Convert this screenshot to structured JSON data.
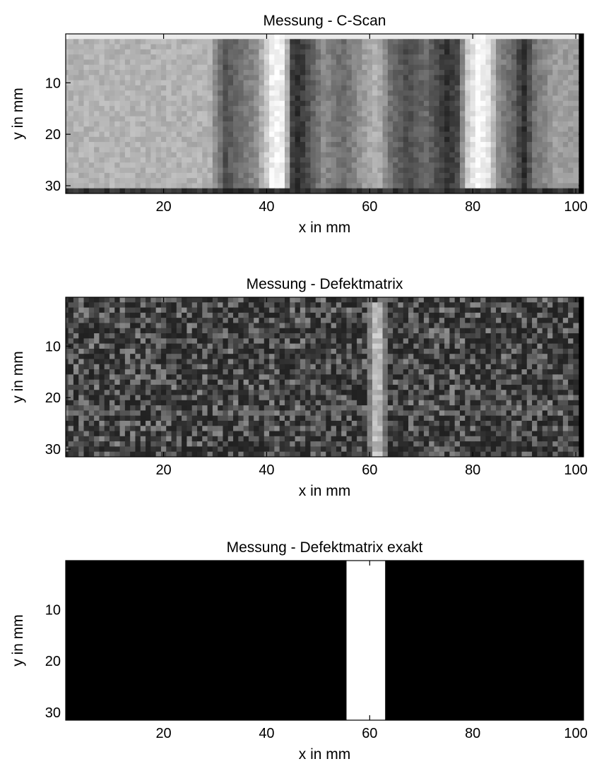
{
  "figure": {
    "background": "#ffffff",
    "colormap": "gray",
    "axes_color": "#000000"
  },
  "chart_data": [
    {
      "type": "heatmap",
      "title": "Messung - C-Scan",
      "xlabel": "x in mm",
      "ylabel": "y in mm",
      "xlim": [
        1,
        101.5
      ],
      "ylim": [
        0.5,
        31.5
      ],
      "y_reversed": true,
      "xticks": [
        20,
        40,
        60,
        80,
        100
      ],
      "yticks": [
        10,
        20,
        30
      ],
      "x_tick_labels": [
        "20",
        "40",
        "60",
        "80",
        "100"
      ],
      "y_tick_labels": [
        "10",
        "20",
        "30"
      ],
      "columns": 100,
      "rows": 31,
      "value_range": [
        0,
        1
      ],
      "column_profile": [
        [
          1,
          0.7
        ],
        [
          29,
          0.7
        ],
        [
          30,
          0.55
        ],
        [
          32,
          0.32
        ],
        [
          35,
          0.45
        ],
        [
          38,
          0.55
        ],
        [
          40,
          0.8
        ],
        [
          41.5,
          1.0
        ],
        [
          43.5,
          0.9
        ],
        [
          45,
          0.25
        ],
        [
          46,
          0.18
        ],
        [
          48,
          0.3
        ],
        [
          51,
          0.55
        ],
        [
          55,
          0.42
        ],
        [
          59,
          0.62
        ],
        [
          61.5,
          0.72
        ],
        [
          64,
          0.45
        ],
        [
          67,
          0.3
        ],
        [
          71,
          0.42
        ],
        [
          75,
          0.2
        ],
        [
          77,
          0.28
        ],
        [
          79,
          0.8
        ],
        [
          81,
          0.98
        ],
        [
          83,
          0.9
        ],
        [
          85,
          0.55
        ],
        [
          88,
          0.38
        ],
        [
          90,
          0.18
        ],
        [
          92,
          0.45
        ],
        [
          96,
          0.62
        ],
        [
          101,
          0.6
        ]
      ],
      "top_row_value": 0.92,
      "bottom_row_value": 0.12,
      "noise": 0.06
    },
    {
      "type": "heatmap",
      "title": "Messung - Defektmatrix",
      "xlabel": "x in mm",
      "ylabel": "y in mm",
      "xlim": [
        1,
        101.5
      ],
      "ylim": [
        0.5,
        31.5
      ],
      "y_reversed": true,
      "xticks": [
        20,
        40,
        60,
        80,
        100
      ],
      "yticks": [
        10,
        20,
        30
      ],
      "x_tick_labels": [
        "20",
        "40",
        "60",
        "80",
        "100"
      ],
      "y_tick_labels": [
        "10",
        "20",
        "30"
      ],
      "columns": 100,
      "rows": 31,
      "value_range": [
        0,
        1
      ],
      "background_level": 0.13,
      "noise": 0.18,
      "defect_band": {
        "x_center": 61.5,
        "half_width": 2.0,
        "y_from": 2,
        "y_to": 31,
        "level": 0.78
      },
      "bright_row": {
        "y": 22.5,
        "level": 0.42
      }
    },
    {
      "type": "heatmap",
      "title": "Messung - Defektmatrix exakt",
      "xlabel": "x in mm",
      "ylabel": "y in mm",
      "xlim": [
        1,
        101.5
      ],
      "ylim": [
        0.5,
        31.5
      ],
      "y_reversed": true,
      "xticks": [
        20,
        40,
        60,
        80,
        100
      ],
      "yticks": [
        10,
        20,
        30
      ],
      "x_tick_labels": [
        "20",
        "40",
        "60",
        "80",
        "100"
      ],
      "y_tick_labels": [
        "10",
        "20",
        "30"
      ],
      "columns": 100,
      "rows": 31,
      "value_range": [
        0,
        1
      ],
      "background_level": 0,
      "defect": {
        "x_from": 56,
        "x_to": 62.5,
        "value": 1
      }
    }
  ]
}
